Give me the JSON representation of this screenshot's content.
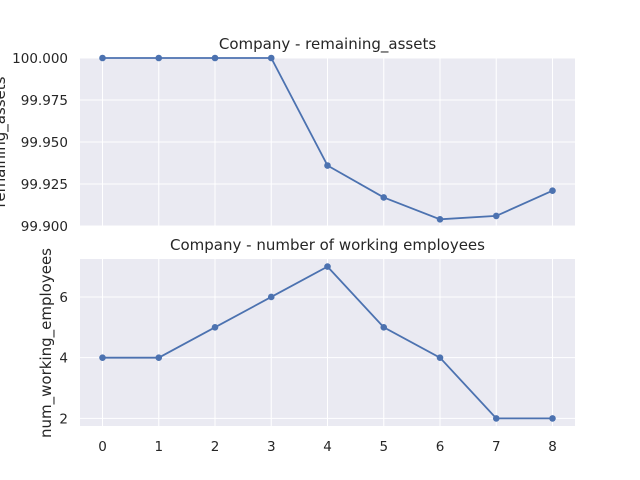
{
  "chart_data": [
    {
      "type": "line",
      "title": "Company - remaining_assets",
      "ylabel": "remaining_assets",
      "xlabel": "",
      "x": [
        0,
        1,
        2,
        3,
        4,
        5,
        6,
        7,
        8
      ],
      "series": [
        {
          "values": [
            100.0,
            100.0,
            100.0,
            100.0,
            99.936,
            99.917,
            99.904,
            99.906,
            99.921
          ]
        }
      ],
      "ylim": [
        99.9,
        100.0
      ],
      "yticks": [
        99.9,
        99.925,
        99.95,
        99.975,
        100.0
      ],
      "ytick_labels": [
        "99.900",
        "99.925",
        "99.950",
        "99.975",
        "100.000"
      ],
      "xtick_labels": [],
      "grid": true,
      "color": "#4c72b0"
    },
    {
      "type": "line",
      "title": "Company - number of working employees",
      "ylabel": "num_working_employees",
      "xlabel": "",
      "x": [
        0,
        1,
        2,
        3,
        4,
        5,
        6,
        7,
        8
      ],
      "series": [
        {
          "values": [
            4,
            4,
            5,
            6,
            7,
            5,
            4,
            2,
            2
          ]
        }
      ],
      "ylim": [
        1.75,
        7.25
      ],
      "yticks": [
        2,
        4,
        6
      ],
      "ytick_labels": [
        "2",
        "4",
        "6"
      ],
      "xtick_labels": [
        "0",
        "1",
        "2",
        "3",
        "4",
        "5",
        "6",
        "7",
        "8"
      ],
      "grid": true,
      "color": "#4c72b0"
    }
  ]
}
